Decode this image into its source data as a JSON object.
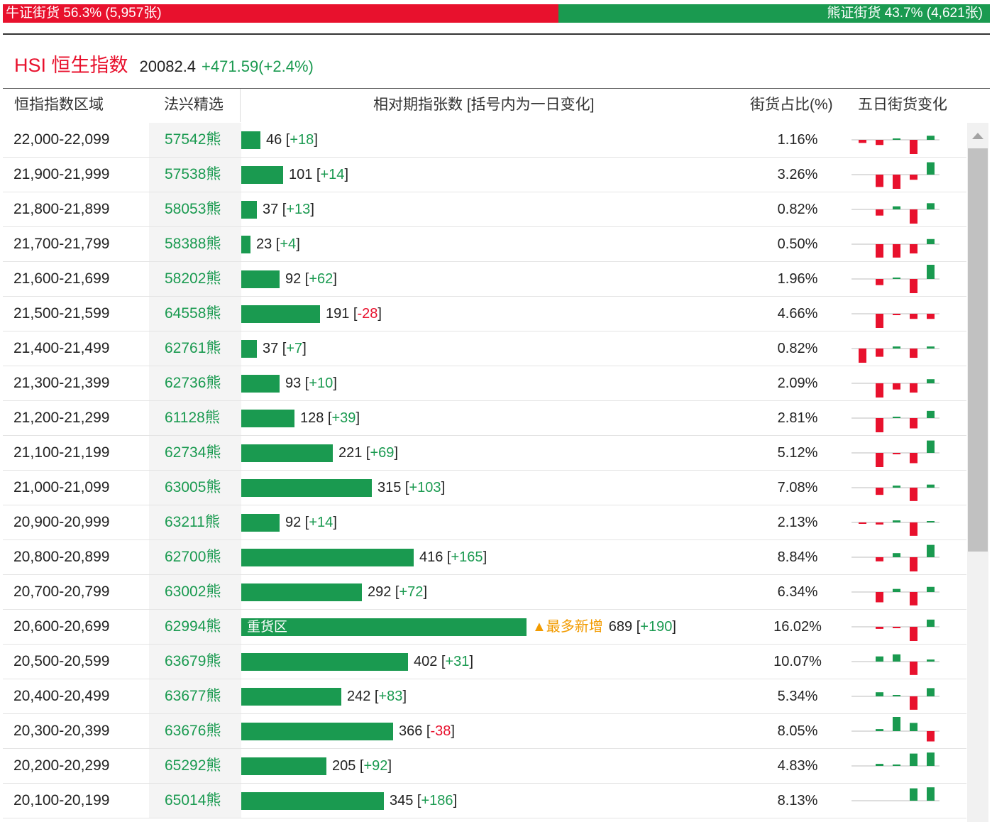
{
  "summary": {
    "bull_label": "牛证街货 56.3% (5,957张)",
    "bull_pct": 56.3,
    "bear_label": "熊证街货 43.7% (4,621张)",
    "bear_pct": 43.7
  },
  "index": {
    "name": "HSI 恒生指数",
    "value": "20082.4",
    "change": "+471.59(+2.4%)"
  },
  "columns": {
    "range": "恒指指数区域",
    "pick": "法兴精选",
    "contracts": "相对期指张数 [括号内为一日变化]",
    "share": "街货占比(%)",
    "five_day": "五日街货变化"
  },
  "colors": {
    "bull": "#e8112d",
    "bear": "#1a9a50",
    "hot": "#f29b00"
  },
  "hot_badge": "▲最多新增",
  "heavy_label": "重货区",
  "rows": [
    {
      "range": "22,000-22,099",
      "code": "57542熊",
      "count": 46,
      "change": "+18",
      "share": "1.16%",
      "spark": [
        -3,
        -5,
        1,
        -16,
        4
      ]
    },
    {
      "range": "21,900-21,999",
      "code": "57538熊",
      "count": 101,
      "change": "+14",
      "share": "3.26%",
      "spark": [
        0,
        -12,
        -14,
        -5,
        12
      ]
    },
    {
      "range": "21,800-21,899",
      "code": "58053熊",
      "count": 37,
      "change": "+13",
      "share": "0.82%",
      "spark": [
        0,
        -6,
        3,
        -14,
        6
      ]
    },
    {
      "range": "21,700-21,799",
      "code": "58388熊",
      "count": 23,
      "change": "+4",
      "share": "0.50%",
      "spark": [
        0,
        -13,
        -13,
        -9,
        5
      ]
    },
    {
      "range": "21,600-21,699",
      "code": "58202熊",
      "count": 92,
      "change": "+62",
      "share": "1.96%",
      "spark": [
        0,
        -6,
        1,
        -14,
        14
      ]
    },
    {
      "range": "21,500-21,599",
      "code": "64558熊",
      "count": 191,
      "change": "-28",
      "share": "4.66%",
      "spark": [
        0,
        -14,
        -1,
        -5,
        -5
      ]
    },
    {
      "range": "21,400-21,499",
      "code": "62761熊",
      "count": 37,
      "change": "+7",
      "share": "0.82%",
      "spark": [
        -14,
        -8,
        2,
        -9,
        2
      ]
    },
    {
      "range": "21,300-21,399",
      "code": "62736熊",
      "count": 93,
      "change": "+10",
      "share": "2.09%",
      "spark": [
        0,
        -14,
        -6,
        -9,
        4
      ]
    },
    {
      "range": "21,200-21,299",
      "code": "61128熊",
      "count": 128,
      "change": "+39",
      "share": "2.81%",
      "spark": [
        0,
        -14,
        1,
        -10,
        7
      ]
    },
    {
      "range": "21,100-21,199",
      "code": "62734熊",
      "count": 221,
      "change": "+69",
      "share": "5.12%",
      "spark": [
        0,
        -14,
        -1,
        -10,
        12
      ]
    },
    {
      "range": "21,000-21,099",
      "code": "63005熊",
      "count": 315,
      "change": "+103",
      "share": "7.08%",
      "spark": [
        0,
        -7,
        2,
        -13,
        3
      ]
    },
    {
      "range": "20,900-20,999",
      "code": "63211熊",
      "count": 92,
      "change": "+14",
      "share": "2.13%",
      "spark": [
        -1,
        -2,
        2,
        -13,
        1
      ]
    },
    {
      "range": "20,800-20,899",
      "code": "62700熊",
      "count": 416,
      "change": "+165",
      "share": "8.84%",
      "spark": [
        0,
        -4,
        4,
        -14,
        12
      ]
    },
    {
      "range": "20,700-20,799",
      "code": "63002熊",
      "count": 292,
      "change": "+72",
      "share": "6.34%",
      "spark": [
        0,
        -10,
        3,
        -13,
        5
      ]
    },
    {
      "range": "20,600-20,699",
      "code": "62994熊",
      "count": 689,
      "change": "+190",
      "share": "16.02%",
      "spark": [
        0,
        -2,
        -1,
        -14,
        7
      ],
      "heavy": true,
      "hot": true
    },
    {
      "range": "20,500-20,599",
      "code": "63679熊",
      "count": 402,
      "change": "+31",
      "share": "10.07%",
      "spark": [
        0,
        5,
        7,
        -13,
        2
      ]
    },
    {
      "range": "20,400-20,499",
      "code": "63677熊",
      "count": 242,
      "change": "+83",
      "share": "5.34%",
      "spark": [
        0,
        4,
        1,
        -13,
        8
      ]
    },
    {
      "range": "20,300-20,399",
      "code": "63676熊",
      "count": 366,
      "change": "-38",
      "share": "8.05%",
      "spark": [
        0,
        2,
        14,
        8,
        -10
      ]
    },
    {
      "range": "20,200-20,299",
      "code": "65292熊",
      "count": 205,
      "change": "+92",
      "share": "4.83%",
      "spark": [
        0,
        2,
        1,
        12,
        13
      ]
    },
    {
      "range": "20,100-20,199",
      "code": "65014熊",
      "count": 345,
      "change": "+186",
      "share": "8.13%",
      "spark": [
        0,
        0,
        0,
        12,
        13
      ]
    }
  ]
}
